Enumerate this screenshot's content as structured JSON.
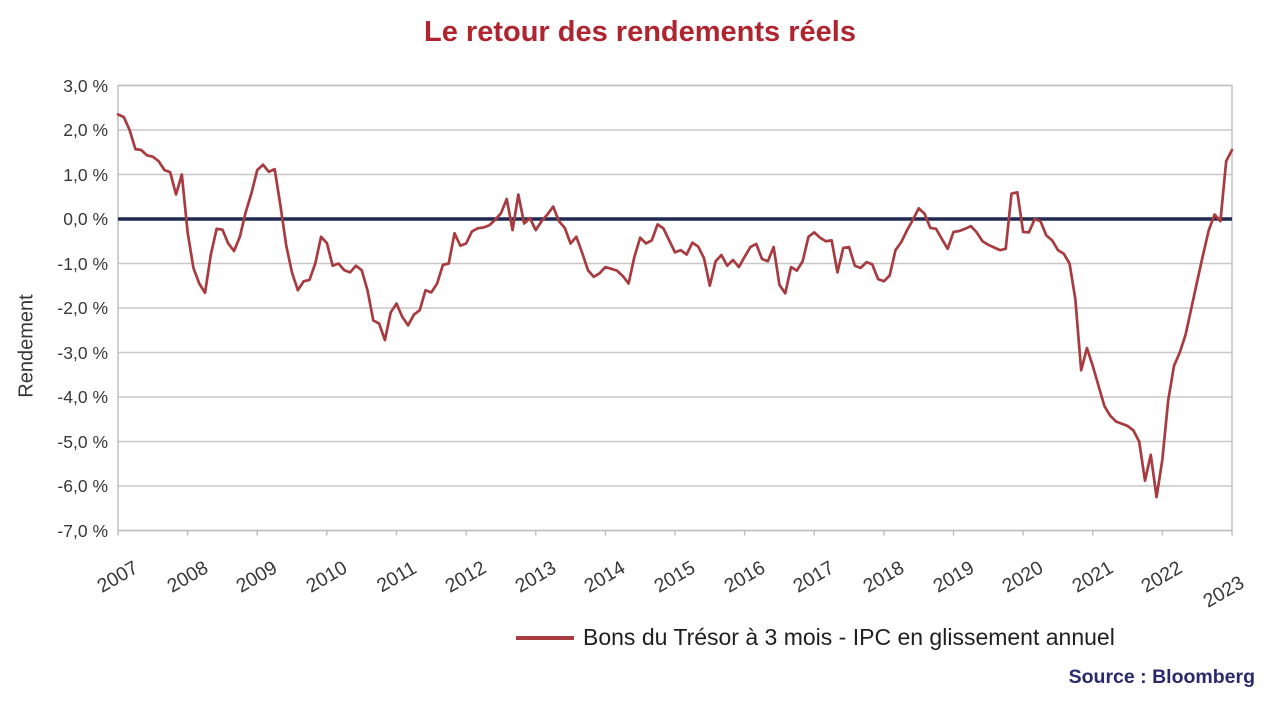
{
  "title": "Le retour des rendements réels",
  "source": "Source : Bloomberg",
  "legend": {
    "label": "Bons du Trésor à 3 mois - IPC en glissement annuel"
  },
  "y_axis": {
    "title": "Rendement",
    "tick_labels": [
      "3,0 %",
      "2,0 %",
      "1,0 %",
      "0,0 %",
      "-1,0 %",
      "-2,0 %",
      "-3,0 %",
      "-4,0 %",
      "-5,0 %",
      "-6,0 %",
      "-7,0 %"
    ],
    "tick_values": [
      3,
      2,
      1,
      0,
      -1,
      -2,
      -3,
      -4,
      -5,
      -6,
      -7
    ]
  },
  "x_axis": {
    "tick_labels": [
      "2007",
      "2008",
      "2009",
      "2010",
      "2011",
      "2012",
      "2013",
      "2014",
      "2015",
      "2016",
      "2017",
      "2018",
      "2019",
      "2020",
      "2021",
      "2022",
      "2023"
    ]
  },
  "colors": {
    "title": "#B0242F",
    "series_line": "#A83B40",
    "zero_line": "#1F2951",
    "source": "#29296B",
    "gridline": "#C8C8C8",
    "plot_border": "#BDBDBD",
    "tick_text": "#383838",
    "axis_title_text": "#383838"
  },
  "chart_data": {
    "type": "line",
    "title": "Le retour des rendements réels",
    "xlabel": "",
    "ylabel": "Rendement",
    "unit": "%",
    "ylim": [
      -7.0,
      3.0
    ],
    "grid": "horizontal",
    "legend_position": "bottom",
    "frequency": "monthly",
    "x_start_year": 2007,
    "x_end_year": 2023,
    "series": [
      {
        "name": "Bons du Trésor à 3 mois - IPC en glissement annuel",
        "values": [
          2.35,
          2.29,
          2.0,
          1.57,
          1.55,
          1.43,
          1.4,
          1.3,
          1.1,
          1.05,
          0.55,
          1.0,
          -0.3,
          -1.1,
          -1.45,
          -1.66,
          -0.8,
          -0.22,
          -0.24,
          -0.55,
          -0.72,
          -0.4,
          0.15,
          0.58,
          1.1,
          1.22,
          1.06,
          1.12,
          0.3,
          -0.6,
          -1.21,
          -1.6,
          -1.4,
          -1.37,
          -1.0,
          -0.4,
          -0.54,
          -1.05,
          -1.0,
          -1.15,
          -1.2,
          -1.05,
          -1.15,
          -1.6,
          -2.28,
          -2.35,
          -2.72,
          -2.1,
          -1.9,
          -2.2,
          -2.39,
          -2.15,
          -2.05,
          -1.6,
          -1.65,
          -1.45,
          -1.03,
          -1.0,
          -0.32,
          -0.6,
          -0.55,
          -0.28,
          -0.21,
          -0.19,
          -0.14,
          -0.02,
          0.13,
          0.45,
          -0.25,
          0.55,
          -0.1,
          0.02,
          -0.25,
          -0.05,
          0.1,
          0.28,
          -0.05,
          -0.2,
          -0.55,
          -0.4,
          -0.76,
          -1.15,
          -1.3,
          -1.22,
          -1.08,
          -1.12,
          -1.16,
          -1.28,
          -1.45,
          -0.85,
          -0.42,
          -0.55,
          -0.48,
          -0.12,
          -0.21,
          -0.48,
          -0.75,
          -0.7,
          -0.8,
          -0.53,
          -0.62,
          -0.88,
          -1.5,
          -0.95,
          -0.81,
          -1.05,
          -0.92,
          -1.08,
          -0.85,
          -0.63,
          -0.56,
          -0.9,
          -0.95,
          -0.63,
          -1.48,
          -1.67,
          -1.08,
          -1.16,
          -0.95,
          -0.4,
          -0.3,
          -0.42,
          -0.5,
          -0.48,
          -1.2,
          -0.65,
          -0.63,
          -1.05,
          -1.1,
          -0.97,
          -1.02,
          -1.35,
          -1.4,
          -1.27,
          -0.7,
          -0.52,
          -0.25,
          -0.02,
          0.24,
          0.12,
          -0.2,
          -0.22,
          -0.45,
          -0.67,
          -0.29,
          -0.27,
          -0.22,
          -0.16,
          -0.3,
          -0.5,
          -0.58,
          -0.64,
          -0.7,
          -0.67,
          0.57,
          0.6,
          -0.29,
          -0.3,
          0.0,
          -0.05,
          -0.37,
          -0.48,
          -0.7,
          -0.78,
          -1.0,
          -1.8,
          -3.4,
          -2.9,
          -3.3,
          -3.75,
          -4.2,
          -4.42,
          -4.55,
          -4.6,
          -4.65,
          -4.75,
          -5.0,
          -5.88,
          -5.3,
          -6.25,
          -5.4,
          -4.08,
          -3.3,
          -3.0,
          -2.6,
          -2.0,
          -1.4,
          -0.81,
          -0.25,
          0.1,
          -0.05,
          1.3,
          1.55
        ]
      }
    ]
  }
}
